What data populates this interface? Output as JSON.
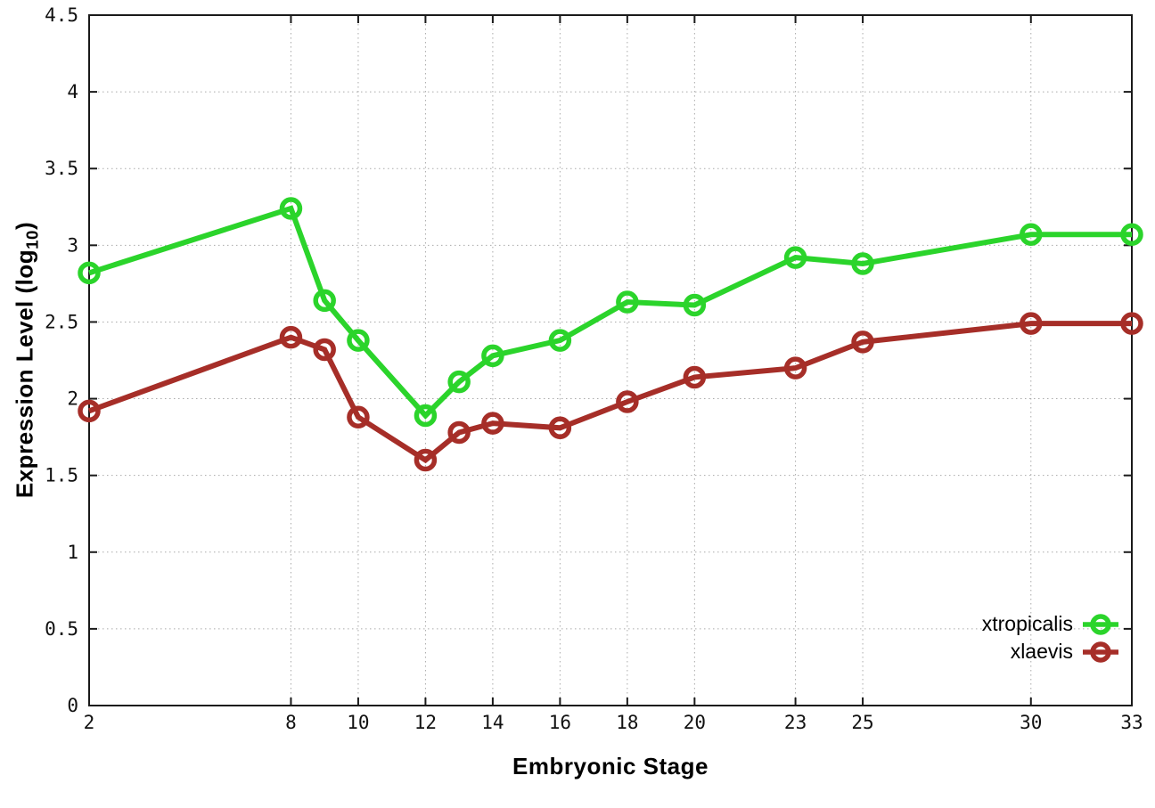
{
  "figure": {
    "xlabel": "Embryonic Stage",
    "ylabel_prefix": "Expression Level (log",
    "ylabel_sub": "10",
    "ylabel_suffix": ")"
  },
  "chart_data": {
    "type": "line",
    "title": "",
    "xlabel": "Embryonic Stage",
    "ylabel": "Expression Level (log10)",
    "xlim": [
      2,
      33
    ],
    "ylim": [
      0,
      4.5
    ],
    "x_ticks": [
      2,
      8,
      10,
      12,
      14,
      16,
      18,
      20,
      23,
      25,
      30,
      33
    ],
    "y_ticks": [
      0,
      0.5,
      1,
      1.5,
      2,
      2.5,
      3,
      3.5,
      4,
      4.5
    ],
    "grid": true,
    "legend_position": "bottom-right",
    "marker": "open-circle",
    "x": [
      2,
      8,
      9,
      10,
      12,
      13,
      14,
      16,
      18,
      20,
      23,
      25,
      30,
      33
    ],
    "series": [
      {
        "name": "xtropicalis",
        "color": "#2bd42b",
        "values": [
          2.82,
          3.24,
          2.64,
          2.38,
          1.89,
          2.11,
          2.28,
          2.38,
          2.63,
          2.61,
          2.92,
          2.88,
          3.07,
          3.07
        ]
      },
      {
        "name": "xlaevis",
        "color": "#a62e28",
        "values": [
          1.92,
          2.4,
          2.32,
          1.88,
          1.6,
          1.78,
          1.84,
          1.81,
          1.98,
          2.14,
          2.2,
          2.37,
          2.49,
          2.49
        ]
      }
    ]
  },
  "colors": {
    "grid": "#aaaaaa",
    "axis": "#1a1a1a",
    "text": "#000000",
    "background": "#ffffff"
  }
}
